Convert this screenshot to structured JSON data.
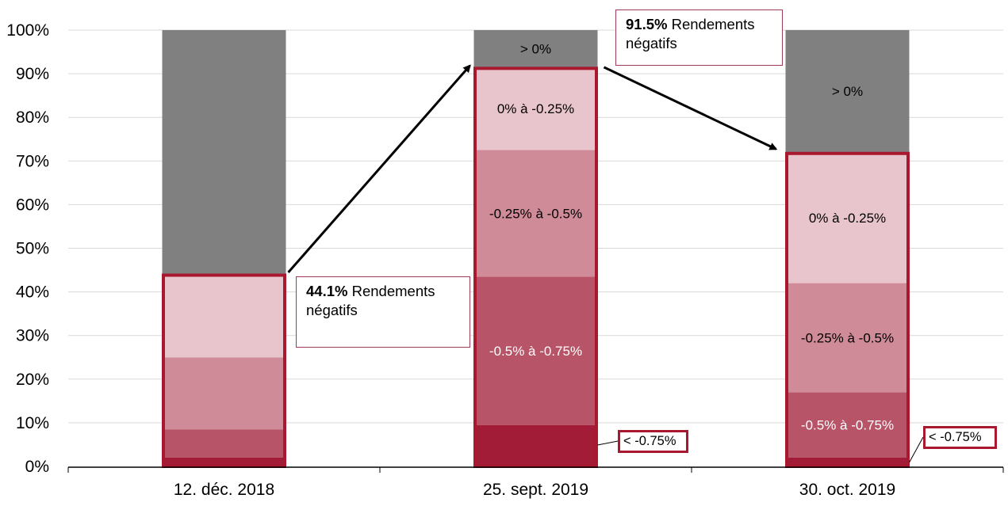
{
  "chart_data": {
    "type": "bar",
    "stacked": true,
    "categories": [
      "12. déc. 2018",
      "25. sept. 2019",
      "30. oct. 2019"
    ],
    "ylim": [
      0,
      100
    ],
    "yticks": [
      "0%",
      "10%",
      "20%",
      "30%",
      "40%",
      "50%",
      "60%",
      "70%",
      "80%",
      "90%",
      "100%"
    ],
    "grid": true,
    "series": [
      {
        "name": "< -0.75%",
        "values": [
          2.0,
          9.5,
          2.0
        ],
        "color": "#a31c37"
      },
      {
        "name": "-0.5% à -0.75%",
        "values": [
          6.5,
          34.0,
          15.0
        ],
        "color": "#b85468"
      },
      {
        "name": "-0.25% à -0.5%",
        "values": [
          16.5,
          29.0,
          25.0
        ],
        "color": "#d08b98"
      },
      {
        "name": "0% à -0.25%",
        "values": [
          19.1,
          19.0,
          30.0
        ],
        "color": "#e8c5cc"
      },
      {
        "name": "> 0%",
        "values": [
          55.9,
          8.5,
          28.0
        ],
        "color": "#808080"
      }
    ],
    "segment_labels": [
      [
        "",
        "",
        "",
        "",
        ""
      ],
      [
        "",
        "-0.5% à -0.75%",
        "-0.25% à -0.5%",
        "0% à -0.25%",
        "> 0%"
      ],
      [
        "",
        "-0.5% à -0.75%",
        "-0.25% à -0.5%",
        "0% à -0.25%",
        "> 0%"
      ]
    ],
    "negative_totals": [
      44.1,
      91.5,
      72.0
    ],
    "highlight_color": "#a8182f",
    "arrow_color": "#000000"
  },
  "annotations": {
    "callout_1": {
      "value": "44.1%",
      "text": "Rendements négatifs"
    },
    "callout_2": {
      "value": "91.5%",
      "text": "Rendements négatifs"
    },
    "small_label_1": "< -0.75%",
    "small_label_2": "< -0.75%"
  }
}
